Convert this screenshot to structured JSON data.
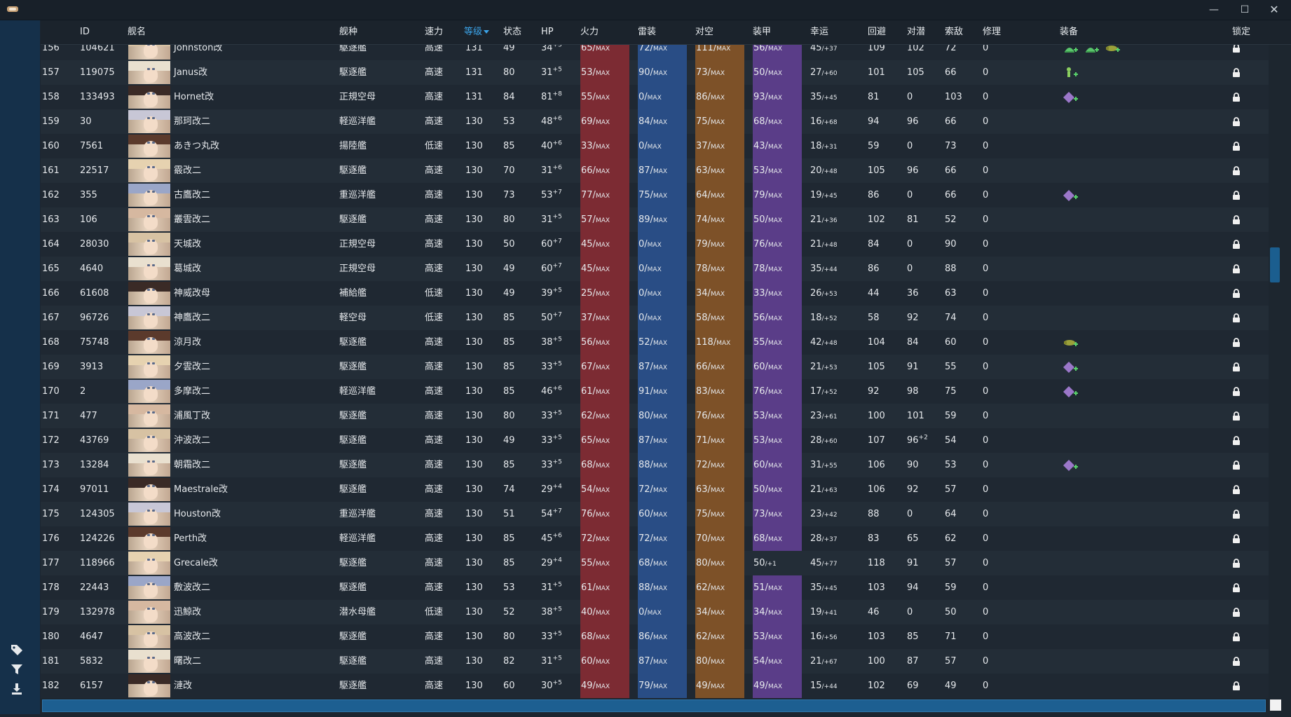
{
  "window": {
    "minimize": "—",
    "maximize": "☐",
    "close": "✕"
  },
  "columns": {
    "id": "ID",
    "name": "舰名",
    "type": "舰种",
    "speed": "速力",
    "level": "等级",
    "cond": "状态",
    "hp": "HP",
    "fire": "火力",
    "torp": "雷装",
    "aa": "对空",
    "armor": "装甲",
    "luck": "幸运",
    "evasion": "回避",
    "asw": "对潜",
    "los": "索敌",
    "repair": "修理",
    "equip": "装备",
    "lock": "锁定"
  },
  "colors": {
    "fire": "#7c2b33",
    "torp": "#294d85",
    "aa": "#7d5128",
    "armor": "#5a3d88",
    "accent": "#3ba3e8"
  },
  "rows": [
    {
      "no": "156",
      "id": "104621",
      "name": "Johnston改",
      "type": "駆逐艦",
      "speed": "高速",
      "level": "131",
      "cond": "49",
      "hp": "34",
      "hp_plus": "+5",
      "fire": "65",
      "torp": "72",
      "aa": "111",
      "armor": "56",
      "luck": "45",
      "luck_plus": "/+37",
      "evasion": "109",
      "asw": "102",
      "asw_plus": "",
      "los": "72",
      "repair": "0",
      "equip": [
        "green-dome",
        "green-dome",
        "olive-aircraft"
      ],
      "armor_max": true
    },
    {
      "no": "157",
      "id": "119075",
      "name": "Janus改",
      "type": "駆逐艦",
      "speed": "高速",
      "level": "131",
      "cond": "80",
      "hp": "31",
      "hp_plus": "+5",
      "fire": "53",
      "torp": "90",
      "aa": "73",
      "armor": "50",
      "luck": "27",
      "luck_plus": "/+60",
      "evasion": "101",
      "asw": "105",
      "asw_plus": "",
      "los": "66",
      "repair": "0",
      "equip": [
        "green-figure"
      ],
      "armor_max": true
    },
    {
      "no": "158",
      "id": "133493",
      "name": "Hornet改",
      "type": "正規空母",
      "speed": "高速",
      "level": "131",
      "cond": "84",
      "hp": "81",
      "hp_plus": "+8",
      "fire": "55",
      "torp": "0",
      "aa": "86",
      "armor": "93",
      "luck": "35",
      "luck_plus": "/+45",
      "evasion": "81",
      "asw": "0",
      "asw_plus": "",
      "los": "103",
      "repair": "0",
      "equip": [
        "purple-diamond"
      ],
      "armor_max": true
    },
    {
      "no": "159",
      "id": "30",
      "name": "那珂改二",
      "type": "軽巡洋艦",
      "speed": "高速",
      "level": "130",
      "cond": "53",
      "hp": "48",
      "hp_plus": "+6",
      "fire": "69",
      "torp": "84",
      "aa": "75",
      "armor": "68",
      "luck": "16",
      "luck_plus": "/+68",
      "evasion": "94",
      "asw": "96",
      "asw_plus": "",
      "los": "66",
      "repair": "0",
      "equip": [],
      "armor_max": true
    },
    {
      "no": "160",
      "id": "7561",
      "name": "あきつ丸改",
      "type": "揚陸艦",
      "speed": "低速",
      "level": "130",
      "cond": "85",
      "hp": "40",
      "hp_plus": "+6",
      "fire": "33",
      "torp": "0",
      "aa": "37",
      "armor": "43",
      "luck": "18",
      "luck_plus": "/+31",
      "evasion": "59",
      "asw": "0",
      "asw_plus": "",
      "los": "73",
      "repair": "0",
      "equip": [],
      "armor_max": true
    },
    {
      "no": "161",
      "id": "22517",
      "name": "霰改二",
      "type": "駆逐艦",
      "speed": "高速",
      "level": "130",
      "cond": "70",
      "hp": "31",
      "hp_plus": "+6",
      "fire": "66",
      "torp": "87",
      "aa": "63",
      "armor": "53",
      "luck": "20",
      "luck_plus": "/+48",
      "evasion": "105",
      "asw": "96",
      "asw_plus": "",
      "los": "66",
      "repair": "0",
      "equip": [],
      "armor_max": true
    },
    {
      "no": "162",
      "id": "355",
      "name": "古鷹改二",
      "type": "重巡洋艦",
      "speed": "高速",
      "level": "130",
      "cond": "73",
      "hp": "53",
      "hp_plus": "+7",
      "fire": "77",
      "torp": "75",
      "aa": "64",
      "armor": "79",
      "luck": "19",
      "luck_plus": "/+45",
      "evasion": "86",
      "asw": "0",
      "asw_plus": "",
      "los": "66",
      "repair": "0",
      "equip": [
        "purple-diamond"
      ],
      "armor_max": true
    },
    {
      "no": "163",
      "id": "106",
      "name": "叢雲改二",
      "type": "駆逐艦",
      "speed": "高速",
      "level": "130",
      "cond": "80",
      "hp": "31",
      "hp_plus": "+5",
      "fire": "57",
      "torp": "89",
      "aa": "74",
      "armor": "50",
      "luck": "21",
      "luck_plus": "/+36",
      "evasion": "102",
      "asw": "81",
      "asw_plus": "",
      "los": "52",
      "repair": "0",
      "equip": [],
      "armor_max": true
    },
    {
      "no": "164",
      "id": "28030",
      "name": "天城改",
      "type": "正規空母",
      "speed": "高速",
      "level": "130",
      "cond": "50",
      "hp": "60",
      "hp_plus": "+7",
      "fire": "45",
      "torp": "0",
      "aa": "79",
      "armor": "76",
      "luck": "21",
      "luck_plus": "/+48",
      "evasion": "84",
      "asw": "0",
      "asw_plus": "",
      "los": "90",
      "repair": "0",
      "equip": [],
      "armor_max": true
    },
    {
      "no": "165",
      "id": "4640",
      "name": "葛城改",
      "type": "正規空母",
      "speed": "高速",
      "level": "130",
      "cond": "49",
      "hp": "60",
      "hp_plus": "+7",
      "fire": "45",
      "torp": "0",
      "aa": "78",
      "armor": "78",
      "luck": "35",
      "luck_plus": "/+44",
      "evasion": "86",
      "asw": "0",
      "asw_plus": "",
      "los": "88",
      "repair": "0",
      "equip": [],
      "armor_max": true
    },
    {
      "no": "166",
      "id": "61608",
      "name": "神威改母",
      "type": "補給艦",
      "speed": "低速",
      "level": "130",
      "cond": "49",
      "hp": "39",
      "hp_plus": "+5",
      "fire": "25",
      "torp": "0",
      "aa": "34",
      "armor": "33",
      "luck": "26",
      "luck_plus": "/+53",
      "evasion": "44",
      "asw": "36",
      "asw_plus": "",
      "los": "63",
      "repair": "0",
      "equip": [],
      "armor_max": true
    },
    {
      "no": "167",
      "id": "96726",
      "name": "神鷹改二",
      "type": "軽空母",
      "speed": "低速",
      "level": "130",
      "cond": "85",
      "hp": "50",
      "hp_plus": "+7",
      "fire": "37",
      "torp": "0",
      "aa": "58",
      "armor": "56",
      "luck": "18",
      "luck_plus": "/+52",
      "evasion": "58",
      "asw": "92",
      "asw_plus": "",
      "los": "74",
      "repair": "0",
      "equip": [],
      "armor_max": true
    },
    {
      "no": "168",
      "id": "75748",
      "name": "涼月改",
      "type": "駆逐艦",
      "speed": "高速",
      "level": "130",
      "cond": "85",
      "hp": "38",
      "hp_plus": "+5",
      "fire": "56",
      "torp": "52",
      "aa": "118",
      "armor": "55",
      "luck": "42",
      "luck_plus": "/+48",
      "evasion": "104",
      "asw": "84",
      "asw_plus": "",
      "los": "60",
      "repair": "0",
      "equip": [
        "olive-aircraft"
      ],
      "armor_max": true
    },
    {
      "no": "169",
      "id": "3913",
      "name": "夕雲改二",
      "type": "駆逐艦",
      "speed": "高速",
      "level": "130",
      "cond": "85",
      "hp": "33",
      "hp_plus": "+5",
      "fire": "67",
      "torp": "87",
      "aa": "66",
      "armor": "60",
      "luck": "21",
      "luck_plus": "/+53",
      "evasion": "105",
      "asw": "91",
      "asw_plus": "",
      "los": "55",
      "repair": "0",
      "equip": [
        "purple-diamond"
      ],
      "armor_max": true
    },
    {
      "no": "170",
      "id": "2",
      "name": "多摩改二",
      "type": "軽巡洋艦",
      "speed": "高速",
      "level": "130",
      "cond": "85",
      "hp": "46",
      "hp_plus": "+6",
      "fire": "61",
      "torp": "91",
      "aa": "83",
      "armor": "76",
      "luck": "17",
      "luck_plus": "/+52",
      "evasion": "92",
      "asw": "98",
      "asw_plus": "",
      "los": "75",
      "repair": "0",
      "equip": [
        "purple-diamond"
      ],
      "armor_max": true
    },
    {
      "no": "171",
      "id": "477",
      "name": "浦風丁改",
      "type": "駆逐艦",
      "speed": "高速",
      "level": "130",
      "cond": "80",
      "hp": "33",
      "hp_plus": "+5",
      "fire": "62",
      "torp": "80",
      "aa": "76",
      "armor": "53",
      "luck": "23",
      "luck_plus": "/+61",
      "evasion": "100",
      "asw": "101",
      "asw_plus": "",
      "los": "59",
      "repair": "0",
      "equip": [],
      "armor_max": true
    },
    {
      "no": "172",
      "id": "43769",
      "name": "沖波改二",
      "type": "駆逐艦",
      "speed": "高速",
      "level": "130",
      "cond": "49",
      "hp": "33",
      "hp_plus": "+5",
      "fire": "65",
      "torp": "87",
      "aa": "71",
      "armor": "53",
      "luck": "28",
      "luck_plus": "/+60",
      "evasion": "107",
      "asw": "96",
      "asw_plus": "+2",
      "los": "54",
      "repair": "0",
      "equip": [],
      "armor_max": true
    },
    {
      "no": "173",
      "id": "13284",
      "name": "朝霜改二",
      "type": "駆逐艦",
      "speed": "高速",
      "level": "130",
      "cond": "85",
      "hp": "33",
      "hp_plus": "+5",
      "fire": "68",
      "torp": "88",
      "aa": "72",
      "armor": "60",
      "luck": "31",
      "luck_plus": "/+55",
      "evasion": "106",
      "asw": "90",
      "asw_plus": "",
      "los": "53",
      "repair": "0",
      "equip": [
        "purple-diamond"
      ],
      "armor_max": true
    },
    {
      "no": "174",
      "id": "97011",
      "name": "Maestrale改",
      "type": "駆逐艦",
      "speed": "高速",
      "level": "130",
      "cond": "74",
      "hp": "29",
      "hp_plus": "+4",
      "fire": "54",
      "torp": "72",
      "aa": "63",
      "armor": "50",
      "luck": "21",
      "luck_plus": "/+63",
      "evasion": "106",
      "asw": "92",
      "asw_plus": "",
      "los": "57",
      "repair": "0",
      "equip": [],
      "armor_max": true
    },
    {
      "no": "175",
      "id": "124305",
      "name": "Houston改",
      "type": "重巡洋艦",
      "speed": "高速",
      "level": "130",
      "cond": "51",
      "hp": "54",
      "hp_plus": "+7",
      "fire": "76",
      "torp": "60",
      "aa": "75",
      "armor": "73",
      "luck": "23",
      "luck_plus": "/+42",
      "evasion": "88",
      "asw": "0",
      "asw_plus": "",
      "los": "64",
      "repair": "0",
      "equip": [],
      "armor_max": true
    },
    {
      "no": "176",
      "id": "124226",
      "name": "Perth改",
      "type": "軽巡洋艦",
      "speed": "高速",
      "level": "130",
      "cond": "85",
      "hp": "45",
      "hp_plus": "+6",
      "fire": "72",
      "torp": "72",
      "aa": "70",
      "armor": "68",
      "luck": "28",
      "luck_plus": "/+37",
      "evasion": "83",
      "asw": "65",
      "asw_plus": "",
      "los": "62",
      "repair": "0",
      "equip": [],
      "armor_max": true
    },
    {
      "no": "177",
      "id": "118966",
      "name": "Grecale改",
      "type": "駆逐艦",
      "speed": "高速",
      "level": "130",
      "cond": "85",
      "hp": "29",
      "hp_plus": "+4",
      "fire": "55",
      "torp": "68",
      "aa": "80",
      "armor": "50",
      "armor_suffix": "/+1",
      "luck": "45",
      "luck_plus": "/+77",
      "evasion": "118",
      "asw": "91",
      "asw_plus": "",
      "los": "57",
      "repair": "0",
      "equip": [],
      "armor_max": false
    },
    {
      "no": "178",
      "id": "22443",
      "name": "敷波改二",
      "type": "駆逐艦",
      "speed": "高速",
      "level": "130",
      "cond": "53",
      "hp": "31",
      "hp_plus": "+5",
      "fire": "61",
      "torp": "88",
      "aa": "62",
      "armor": "51",
      "luck": "35",
      "luck_plus": "/+45",
      "evasion": "103",
      "asw": "94",
      "asw_plus": "",
      "los": "59",
      "repair": "0",
      "equip": [],
      "armor_max": true
    },
    {
      "no": "179",
      "id": "132978",
      "name": "迅鯨改",
      "type": "潜水母艦",
      "speed": "低速",
      "level": "130",
      "cond": "52",
      "hp": "38",
      "hp_plus": "+5",
      "fire": "40",
      "torp": "0",
      "aa": "34",
      "armor": "34",
      "luck": "19",
      "luck_plus": "/+41",
      "evasion": "46",
      "asw": "0",
      "asw_plus": "",
      "los": "50",
      "repair": "0",
      "equip": [],
      "armor_max": true
    },
    {
      "no": "180",
      "id": "4647",
      "name": "高波改二",
      "type": "駆逐艦",
      "speed": "高速",
      "level": "130",
      "cond": "80",
      "hp": "33",
      "hp_plus": "+5",
      "fire": "68",
      "torp": "86",
      "aa": "62",
      "armor": "53",
      "luck": "16",
      "luck_plus": "/+56",
      "evasion": "103",
      "asw": "85",
      "asw_plus": "",
      "los": "71",
      "repair": "0",
      "equip": [],
      "armor_max": true
    },
    {
      "no": "181",
      "id": "5832",
      "name": "曙改二",
      "type": "駆逐艦",
      "speed": "高速",
      "level": "130",
      "cond": "82",
      "hp": "31",
      "hp_plus": "+5",
      "fire": "60",
      "torp": "87",
      "aa": "80",
      "armor": "54",
      "luck": "21",
      "luck_plus": "/+67",
      "evasion": "100",
      "asw": "87",
      "asw_plus": "",
      "los": "57",
      "repair": "0",
      "equip": [],
      "armor_max": true
    },
    {
      "no": "182",
      "id": "6157",
      "name": "漣改",
      "type": "駆逐艦",
      "speed": "高速",
      "level": "130",
      "cond": "60",
      "hp": "30",
      "hp_plus": "+5",
      "fire": "49",
      "torp": "79",
      "aa": "49",
      "armor": "49",
      "luck": "15",
      "luck_plus": "/+44",
      "evasion": "102",
      "asw": "69",
      "asw_plus": "",
      "los": "49",
      "repair": "0",
      "equip": [],
      "armor_max": true
    }
  ],
  "max_label": "MAX"
}
